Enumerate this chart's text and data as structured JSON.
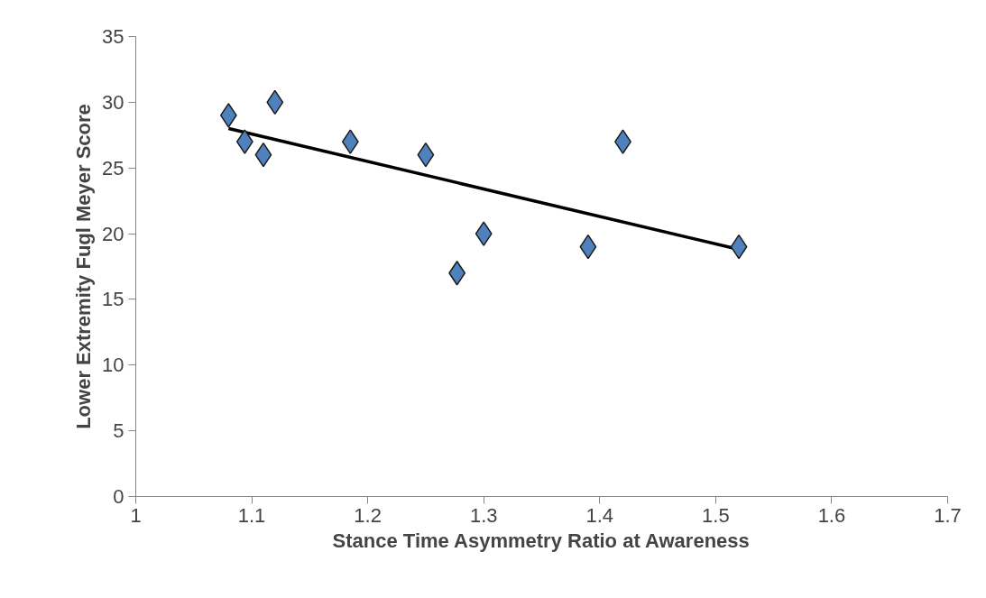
{
  "chart_data": {
    "type": "scatter",
    "xlabel": "Stance Time Asymmetry Ratio at Awareness",
    "ylabel": "Lower Extremity Fugl Meyer Score",
    "xlim": [
      1,
      1.7
    ],
    "ylim": [
      0,
      35
    ],
    "xticks": [
      1,
      1.1,
      1.2,
      1.3,
      1.4,
      1.5,
      1.6,
      1.7
    ],
    "yticks": [
      0,
      5,
      10,
      15,
      20,
      25,
      30,
      35
    ],
    "grid": false,
    "marker": "diamond",
    "series": [
      {
        "color": "#4f81bd",
        "x": [
          1.08,
          1.094,
          1.11,
          1.12,
          1.185,
          1.25,
          1.277,
          1.3,
          1.39,
          1.42,
          1.52
        ],
        "values": [
          29,
          27,
          26,
          30,
          27,
          26,
          17,
          20,
          19,
          27,
          19
        ]
      },
      {
        "type": "line",
        "marker": "none",
        "color": "#000000",
        "x": [
          1.08,
          1.52
        ],
        "values": [
          28.0,
          18.8
        ]
      }
    ]
  }
}
